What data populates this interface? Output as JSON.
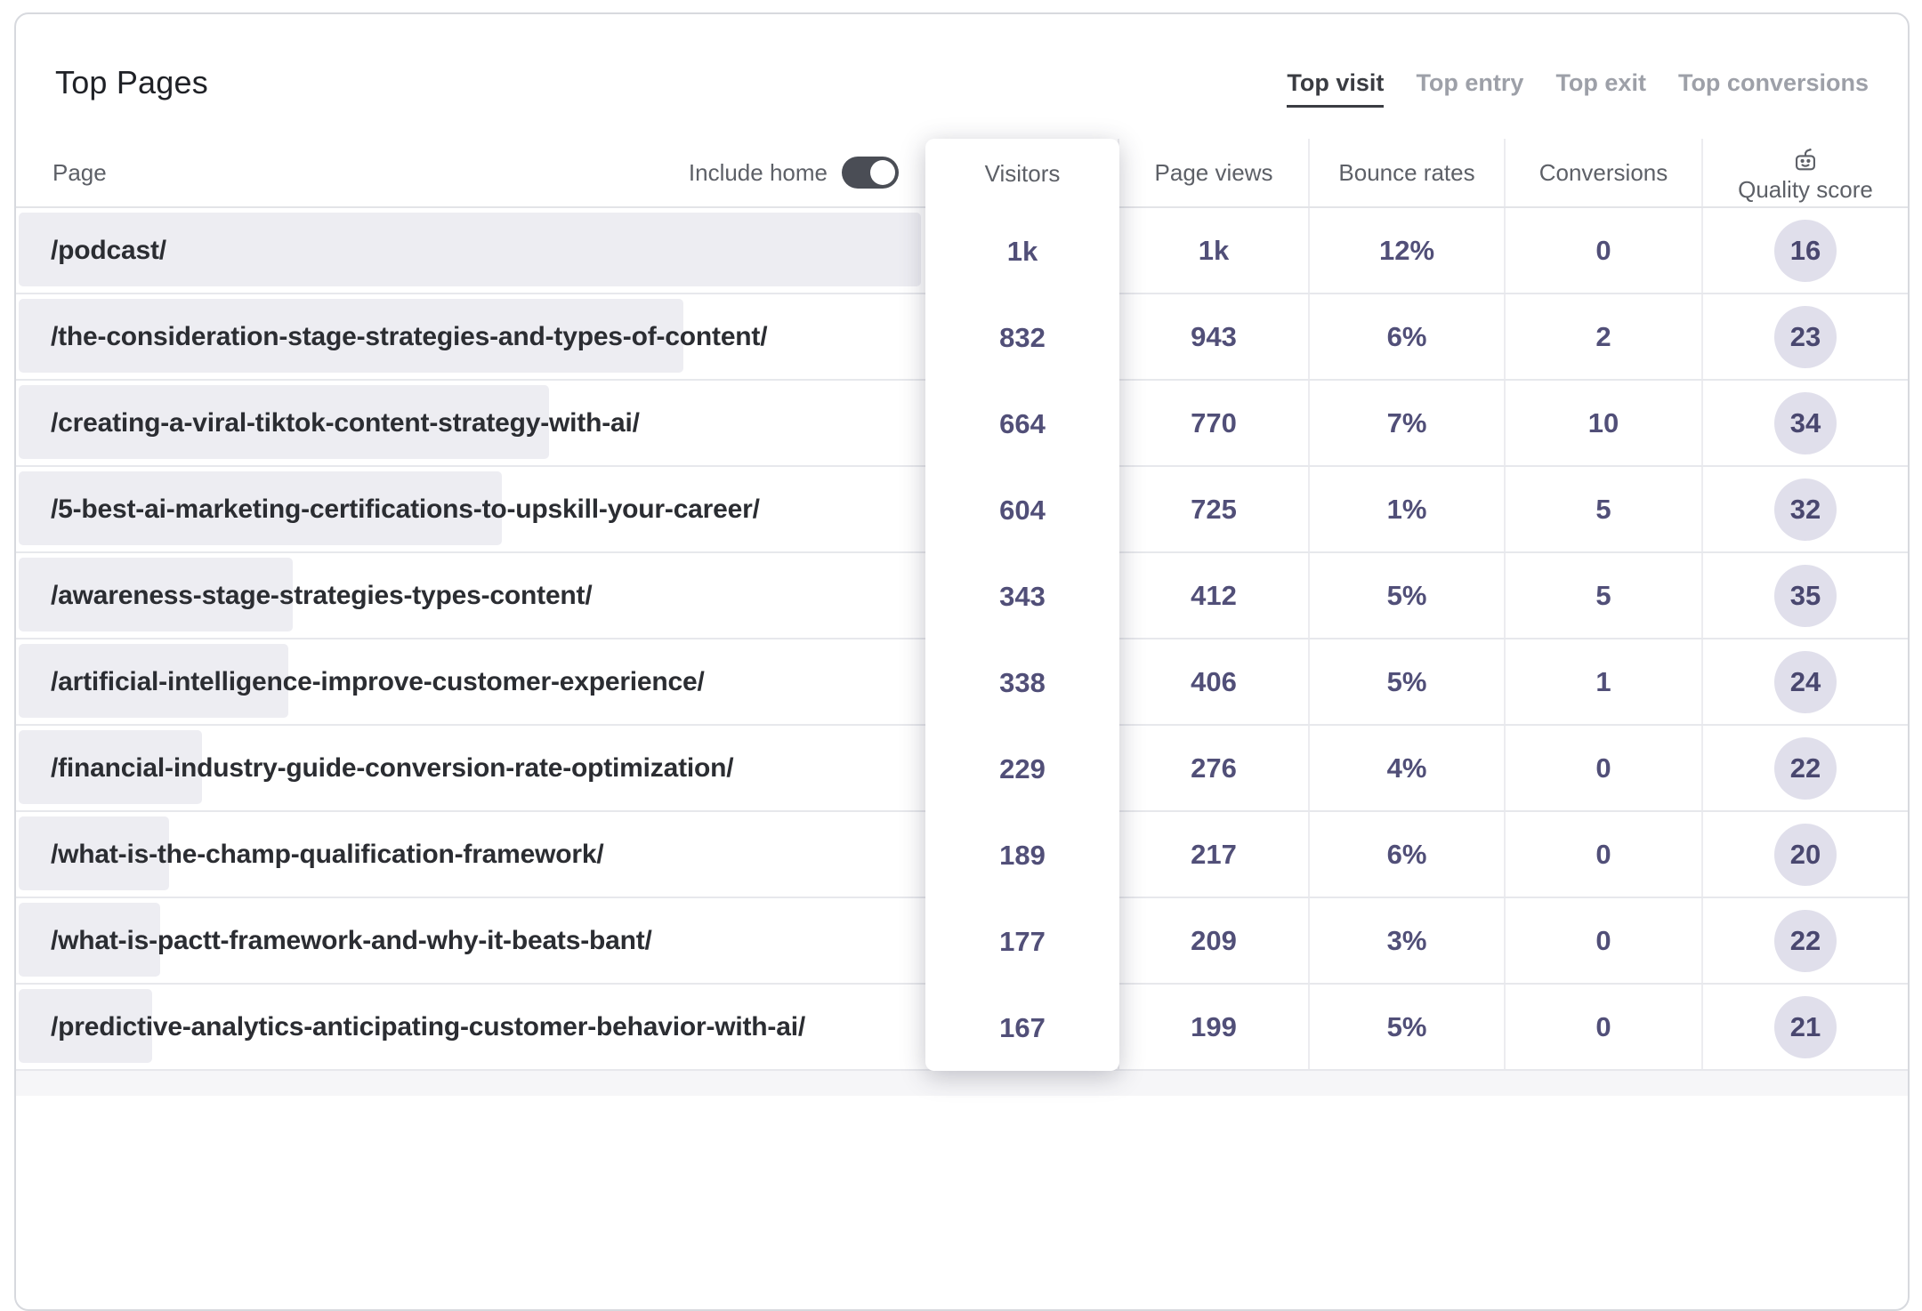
{
  "header": {
    "title": "Top Pages",
    "tabs": [
      {
        "label": "Top visit",
        "active": true
      },
      {
        "label": "Top entry",
        "active": false
      },
      {
        "label": "Top exit",
        "active": false
      },
      {
        "label": "Top conversions",
        "active": false
      }
    ]
  },
  "table": {
    "page_header": "Page",
    "include_home_label": "Include home",
    "include_home_on": true,
    "columns": [
      "Visitors",
      "Page views",
      "Bounce rates",
      "Conversions",
      "Quality score"
    ],
    "quality_icon": "robot-icon",
    "rows": [
      {
        "path": "/podcast/",
        "visitors": "1k",
        "visitors_value": 1000,
        "page_views": "1k",
        "bounce_rate": "12%",
        "conversions": "0",
        "quality_score": "16"
      },
      {
        "path": "/the-consideration-stage-strategies-and-types-of-content/",
        "visitors": "832",
        "visitors_value": 832,
        "page_views": "943",
        "bounce_rate": "6%",
        "conversions": "2",
        "quality_score": "23"
      },
      {
        "path": "/creating-a-viral-tiktok-content-strategy-with-ai/",
        "visitors": "664",
        "visitors_value": 664,
        "page_views": "770",
        "bounce_rate": "7%",
        "conversions": "10",
        "quality_score": "34"
      },
      {
        "path": "/5-best-ai-marketing-certifications-to-upskill-your-career/",
        "visitors": "604",
        "visitors_value": 604,
        "page_views": "725",
        "bounce_rate": "1%",
        "conversions": "5",
        "quality_score": "32"
      },
      {
        "path": "/awareness-stage-strategies-types-content/",
        "visitors": "343",
        "visitors_value": 343,
        "page_views": "412",
        "bounce_rate": "5%",
        "conversions": "5",
        "quality_score": "35"
      },
      {
        "path": "/artificial-intelligence-improve-customer-experience/",
        "visitors": "338",
        "visitors_value": 338,
        "page_views": "406",
        "bounce_rate": "5%",
        "conversions": "1",
        "quality_score": "24"
      },
      {
        "path": "/financial-industry-guide-conversion-rate-optimization/",
        "visitors": "229",
        "visitors_value": 229,
        "page_views": "276",
        "bounce_rate": "4%",
        "conversions": "0",
        "quality_score": "22"
      },
      {
        "path": "/what-is-the-champ-qualification-framework/",
        "visitors": "189",
        "visitors_value": 189,
        "page_views": "217",
        "bounce_rate": "6%",
        "conversions": "0",
        "quality_score": "20"
      },
      {
        "path": "/what-is-pactt-framework-and-why-it-beats-bant/",
        "visitors": "177",
        "visitors_value": 177,
        "page_views": "209",
        "bounce_rate": "3%",
        "conversions": "0",
        "quality_score": "22"
      },
      {
        "path": "/predictive-analytics-anticipating-customer-behavior-with-ai/",
        "visitors": "167",
        "visitors_value": 167,
        "page_views": "199",
        "bounce_rate": "5%",
        "conversions": "0",
        "quality_score": "21"
      }
    ]
  },
  "colors": {
    "value_text": "#514f78",
    "bar_fill": "#ededf2",
    "badge_bg": "#e0dfeb",
    "toggle_on": "#4a4d55",
    "tab_active": "#3a3c42",
    "tab_inactive": "#9da0a8",
    "card_border": "#d7d9de"
  }
}
